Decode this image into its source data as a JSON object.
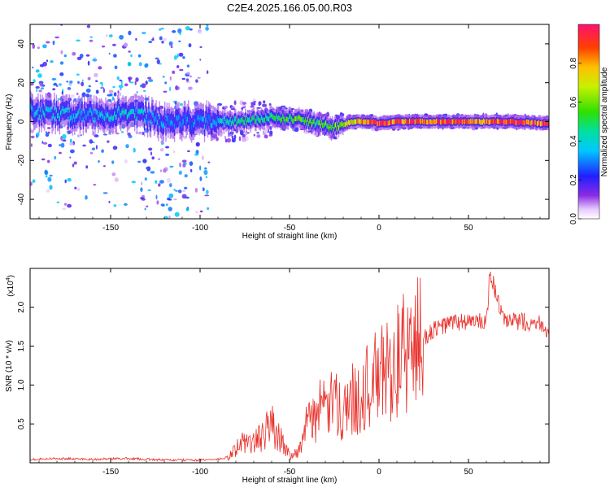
{
  "title": "C2E4.2025.166.05.00.R03",
  "colors": {
    "snr_line": "#e8302a",
    "axis": "#000000",
    "background": "#ffffff"
  },
  "chart_data": [
    {
      "type": "heatmap",
      "xlabel": "Height of straight line (km)",
      "ylabel": "Frequency (Hz)",
      "xlim": [
        -195,
        95
      ],
      "ylim": [
        -50,
        50
      ],
      "xticks": [
        -150,
        -100,
        -50,
        0,
        50
      ],
      "yticks": [
        -40,
        -20,
        0,
        20,
        40
      ],
      "colorbar": {
        "label": "Normalized spectral amplitude",
        "range": [
          0.0,
          1.0
        ],
        "ticks": [
          "0.0",
          "0.2",
          "0.4",
          "0.6",
          "0.8"
        ]
      },
      "ridge": {
        "x": [
          -195,
          -180,
          -160,
          -140,
          -120,
          -100,
          -80,
          -60,
          -45,
          -35,
          -25,
          -15,
          -5,
          0,
          10,
          30,
          50,
          70,
          95
        ],
        "freq": [
          5,
          4,
          3,
          5,
          0,
          0,
          0,
          2,
          1,
          -1,
          -3,
          0,
          0,
          -1,
          0,
          0,
          0,
          0,
          -1
        ],
        "amplitude": [
          0.35,
          0.4,
          0.35,
          0.4,
          0.3,
          0.3,
          0.45,
          0.5,
          0.55,
          0.55,
          0.6,
          0.75,
          0.85,
          0.95,
          0.9,
          0.9,
          0.9,
          0.92,
          0.9
        ]
      }
    },
    {
      "type": "line",
      "xlabel": "Height of straight line (km)",
      "ylabel": "SNR (10 * v/v)",
      "ymultiplier": "(x10",
      "ymultiplier_exp": "4",
      "ymultiplier_close": ")",
      "xlim": [
        -195,
        95
      ],
      "ylim": [
        0,
        2.5
      ],
      "xticks": [
        -150,
        -100,
        -50,
        0,
        50
      ],
      "yticks": [
        "0.5",
        "1.0",
        "1.5",
        "2.0"
      ],
      "x": [
        -195,
        -180,
        -160,
        -140,
        -120,
        -100,
        -90,
        -85,
        -80,
        -75,
        -70,
        -65,
        -60,
        -55,
        -50,
        -45,
        -40,
        -35,
        -30,
        -25,
        -20,
        -15,
        -10,
        -5,
        0,
        5,
        10,
        15,
        20,
        25,
        30,
        35,
        40,
        50,
        60,
        62,
        70,
        80,
        90,
        95
      ],
      "values": [
        0.03,
        0.04,
        0.03,
        0.04,
        0.02,
        0.02,
        0.03,
        0.05,
        0.18,
        0.28,
        0.25,
        0.35,
        0.5,
        0.3,
        0.1,
        0.15,
        0.5,
        0.65,
        0.7,
        0.75,
        0.7,
        0.8,
        0.9,
        1.0,
        1.1,
        1.2,
        1.3,
        1.4,
        1.5,
        1.6,
        1.7,
        1.75,
        1.8,
        1.82,
        1.8,
        2.45,
        1.8,
        1.82,
        1.8,
        1.7
      ]
    }
  ]
}
